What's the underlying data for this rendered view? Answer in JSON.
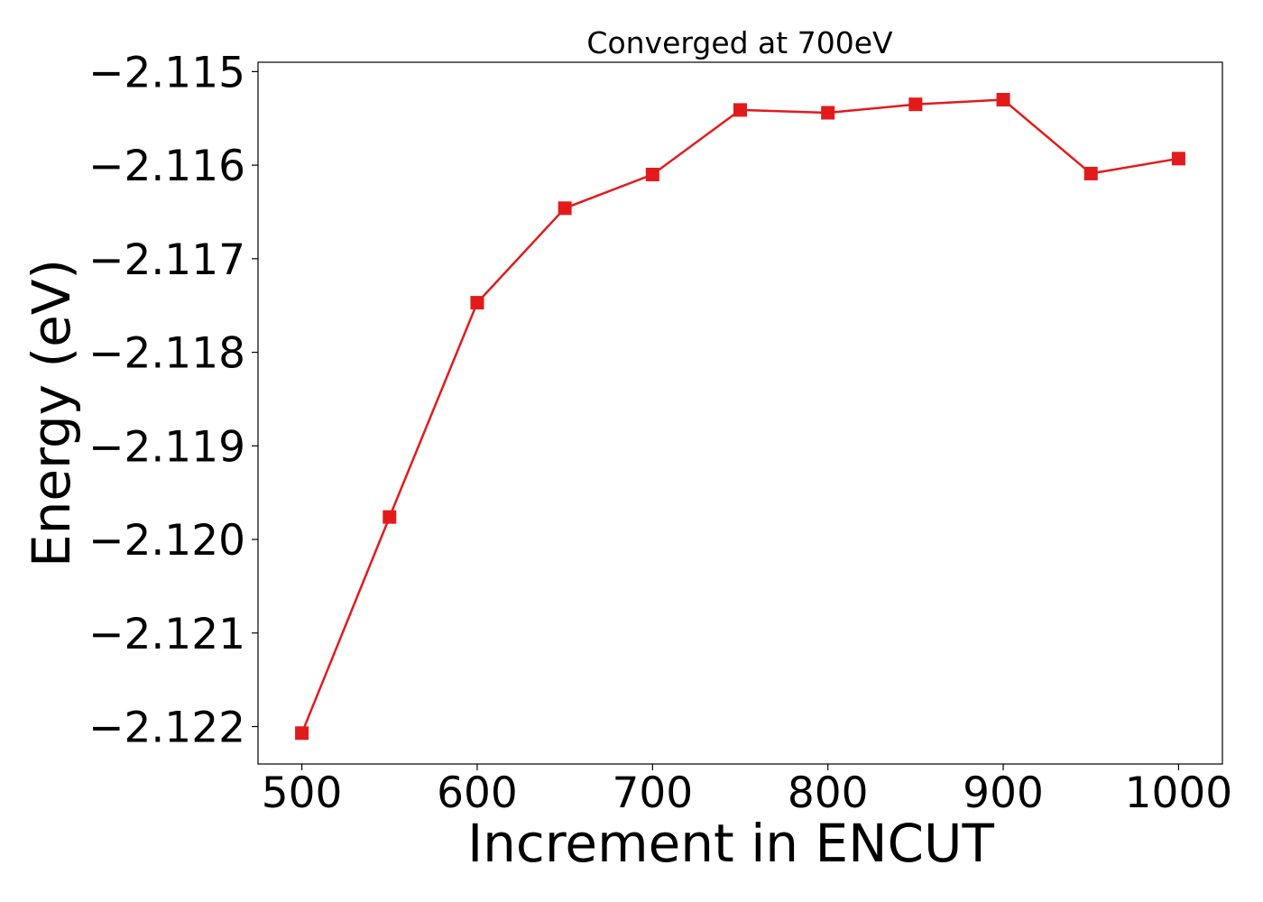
{
  "chart_data": {
    "type": "line",
    "title": "Converged at 700eV",
    "xlabel": "Increment in ENCUT",
    "ylabel": "Energy (eV)",
    "xlim": [
      475,
      1025
    ],
    "ylim": [
      -2.1224,
      -2.1149
    ],
    "x_ticks": [
      500,
      600,
      700,
      800,
      900,
      1000
    ],
    "x_tick_labels": [
      "500",
      "600",
      "700",
      "800",
      "900",
      "1000"
    ],
    "y_ticks": [
      -2.115,
      -2.116,
      -2.117,
      -2.118,
      -2.119,
      -2.12,
      -2.121,
      -2.122
    ],
    "y_tick_labels": [
      "−2.115",
      "−2.116",
      "−2.117",
      "−2.118",
      "−2.119",
      "−2.120",
      "−2.121",
      "−2.122"
    ],
    "grid": false,
    "series": [
      {
        "color": "#e31a1c",
        "marker": "square",
        "x": [
          500,
          550,
          600,
          650,
          700,
          750,
          800,
          850,
          900,
          950,
          1000
        ],
        "y": [
          -2.12207,
          -2.11976,
          -2.11747,
          -2.11646,
          -2.1161,
          -2.11541,
          -2.11544,
          -2.11535,
          -2.1153,
          -2.11609,
          -2.11593
        ]
      }
    ]
  }
}
